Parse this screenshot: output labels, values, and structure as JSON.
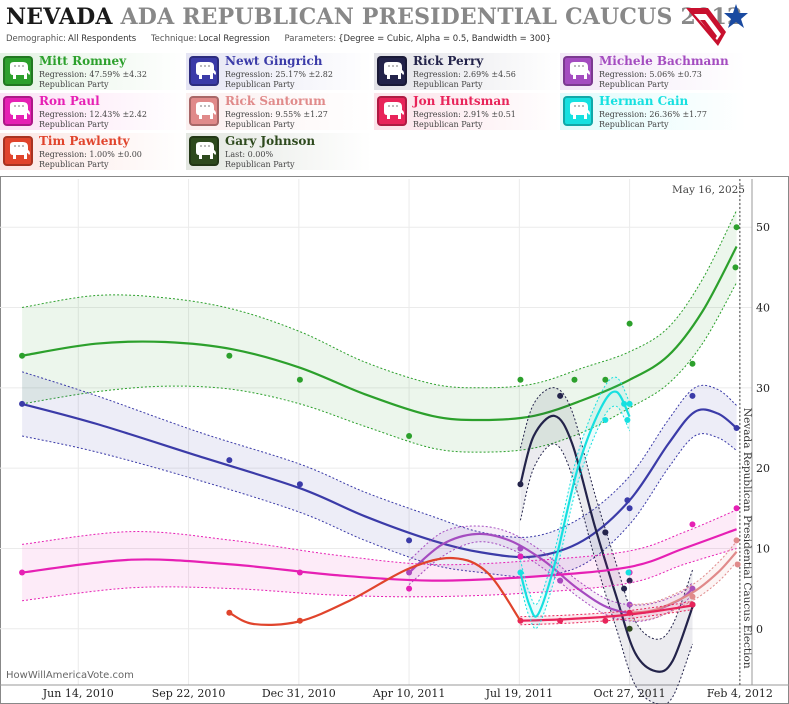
{
  "header": {
    "title_main": "NEVADA",
    "title_rest": "ADA REPUBLICAN PRESIDENTIAL CAUCUS 2012",
    "demographic_label": "Demographic:",
    "demographic_value": "All Respondents",
    "technique_label": "Technique:",
    "technique_value": "Local Regression",
    "parameters_label": "Parameters:",
    "parameters_value": "{Degree = Cubic, Alpha = 0.5, Bandwidth = 300}"
  },
  "candidates": [
    {
      "name": "Mitt Romney",
      "stat": "Regression: 47.59% ±4.32",
      "party": "Republican Party",
      "color": "#2ca02c"
    },
    {
      "name": "Newt Gingrich",
      "stat": "Regression: 25.17% ±2.82",
      "party": "Republican Party",
      "color": "#3b3ba8"
    },
    {
      "name": "Rick Perry",
      "stat": "Regression: 2.69% ±4.56",
      "party": "Republican Party",
      "color": "#23234a"
    },
    {
      "name": "Michele Bachmann",
      "stat": "Regression: 5.06% ±0.73",
      "party": "Republican Party",
      "color": "#a44cc0"
    },
    {
      "name": "Ron Paul",
      "stat": "Regression: 12.43% ±2.42",
      "party": "Republican Party",
      "color": "#e620b4"
    },
    {
      "name": "Rick Santorum",
      "stat": "Regression: 9.55% ±1.27",
      "party": "Republican Party",
      "color": "#e08a8a"
    },
    {
      "name": "Jon Huntsman",
      "stat": "Regression: 2.91% ±0.51",
      "party": "Republican Party",
      "color": "#e8245a"
    },
    {
      "name": "Herman Cain",
      "stat": "Regression: 26.36% ±1.77",
      "party": "Republican Party",
      "color": "#16e0e0"
    },
    {
      "name": "Tim Pawlenty",
      "stat": "Regression: 1.00% ±0.00",
      "party": "Republican Party",
      "color": "#e0442c"
    },
    {
      "name": "Gary Johnson",
      "stat": "Last: 0.00%",
      "party": "Republican Party",
      "color": "#2e4a1e"
    }
  ],
  "chart_data": {
    "type": "line",
    "date_stamp": "May 16, 2025",
    "watermark": "HowWillAmericaVote.com",
    "event_label": "Nevada Republican Presidential Caucus Election",
    "x_ticks": [
      "Jun 14, 2010",
      "Sep 22, 2010",
      "Dec 31, 2010",
      "Apr 10, 2011",
      "Jul 19, 2011",
      "Oct 27, 2011",
      "Feb 4, 2012"
    ],
    "x_range": [
      "2010-04-04",
      "2012-02-15"
    ],
    "event_date": "2012-02-04",
    "y_ticks": [
      0,
      10,
      20,
      30,
      40,
      50
    ],
    "ylim": [
      -7,
      56
    ],
    "series": [
      {
        "name": "Mitt Romney",
        "points": [
          [
            "2010-04-24",
            34
          ],
          [
            "2010-10-29",
            34
          ],
          [
            "2011-01-01",
            31
          ],
          [
            "2011-04-10",
            24
          ],
          [
            "2011-07-20",
            31
          ],
          [
            "2011-09-07",
            31
          ],
          [
            "2011-10-05",
            31
          ],
          [
            "2011-10-27",
            38
          ],
          [
            "2011-12-23",
            33
          ],
          [
            "2012-01-31",
            45
          ],
          [
            "2012-02-01",
            50
          ]
        ],
        "curve": [
          [
            "2010-04-24",
            34
          ],
          [
            "2010-06-30",
            35.5
          ],
          [
            "2010-09-01",
            35.7
          ],
          [
            "2010-11-01",
            34.8
          ],
          [
            "2011-01-01",
            32.5
          ],
          [
            "2011-03-01",
            29.2
          ],
          [
            "2011-05-01",
            26.5
          ],
          [
            "2011-06-15",
            26
          ],
          [
            "2011-08-01",
            26.5
          ],
          [
            "2011-09-15",
            28.5
          ],
          [
            "2011-10-27",
            31
          ],
          [
            "2011-12-01",
            34
          ],
          [
            "2012-01-01",
            39.5
          ],
          [
            "2012-02-01",
            47.6
          ]
        ],
        "band": [
          6,
          6,
          5.5,
          5,
          4.5,
          4,
          4,
          4,
          4,
          4,
          3.5,
          3.5,
          4,
          4.5
        ]
      },
      {
        "name": "Newt Gingrich",
        "points": [
          [
            "2010-04-24",
            28
          ],
          [
            "2010-10-29",
            21
          ],
          [
            "2011-01-01",
            18
          ],
          [
            "2011-04-10",
            11
          ],
          [
            "2011-07-20",
            9
          ],
          [
            "2011-10-05",
            12
          ],
          [
            "2011-10-25",
            16
          ],
          [
            "2011-10-27",
            15
          ],
          [
            "2011-12-23",
            29
          ],
          [
            "2012-02-01",
            25
          ]
        ],
        "curve": [
          [
            "2010-04-24",
            28
          ],
          [
            "2010-07-01",
            25.5
          ],
          [
            "2010-10-01",
            21.5
          ],
          [
            "2011-01-01",
            17.5
          ],
          [
            "2011-03-01",
            14
          ],
          [
            "2011-05-01",
            11
          ],
          [
            "2011-06-15",
            9.5
          ],
          [
            "2011-08-01",
            9
          ],
          [
            "2011-09-15",
            11
          ],
          [
            "2011-10-27",
            16
          ],
          [
            "2011-12-01",
            23
          ],
          [
            "2011-12-25",
            27
          ],
          [
            "2012-01-15",
            26.8
          ],
          [
            "2012-02-01",
            25
          ]
        ],
        "band": [
          4,
          3.5,
          3,
          3,
          3,
          3,
          2.5,
          2.5,
          3,
          3,
          3,
          3,
          3,
          2.8
        ]
      },
      {
        "name": "Rick Perry",
        "points": [
          [
            "2011-07-20",
            18
          ],
          [
            "2011-08-25",
            29
          ],
          [
            "2011-10-05",
            12
          ],
          [
            "2011-10-22",
            5
          ],
          [
            "2011-10-27",
            6
          ],
          [
            "2011-12-23",
            3
          ]
        ],
        "curve": [
          [
            "2011-07-20",
            18
          ],
          [
            "2011-08-01",
            24
          ],
          [
            "2011-08-20",
            26.5
          ],
          [
            "2011-09-05",
            23
          ],
          [
            "2011-09-25",
            13
          ],
          [
            "2011-10-15",
            4
          ],
          [
            "2011-11-01",
            -3
          ],
          [
            "2011-11-20",
            -5.3
          ],
          [
            "2011-12-05",
            -4
          ],
          [
            "2011-12-23",
            2.7
          ]
        ],
        "band": [
          4.5,
          4,
          3.5,
          4,
          4,
          4,
          4,
          4,
          4.5,
          4.6
        ]
      },
      {
        "name": "Michele Bachmann",
        "points": [
          [
            "2011-04-10",
            7
          ],
          [
            "2011-07-20",
            10
          ],
          [
            "2011-08-25",
            6
          ],
          [
            "2011-10-27",
            3
          ],
          [
            "2011-12-23",
            5
          ]
        ],
        "curve": [
          [
            "2011-04-10",
            7
          ],
          [
            "2011-05-10",
            10.5
          ],
          [
            "2011-06-10",
            11.8
          ],
          [
            "2011-07-10",
            11
          ],
          [
            "2011-08-10",
            8.5
          ],
          [
            "2011-09-10",
            5
          ],
          [
            "2011-10-10",
            2.5
          ],
          [
            "2011-11-10",
            2
          ],
          [
            "2011-12-10",
            3.5
          ],
          [
            "2011-12-23",
            5
          ]
        ],
        "band": [
          1.5,
          1.5,
          1,
          1,
          1,
          1,
          1,
          1,
          0.8,
          0.73
        ]
      },
      {
        "name": "Ron Paul",
        "points": [
          [
            "2010-04-24",
            7
          ],
          [
            "2011-01-01",
            7
          ],
          [
            "2011-04-10",
            5
          ],
          [
            "2011-07-20",
            9
          ],
          [
            "2011-10-27",
            7
          ],
          [
            "2011-12-23",
            13
          ],
          [
            "2012-02-01",
            15
          ]
        ],
        "curve": [
          [
            "2010-04-24",
            7
          ],
          [
            "2010-08-01",
            8.6
          ],
          [
            "2010-11-01",
            8
          ],
          [
            "2011-02-01",
            6.7
          ],
          [
            "2011-05-01",
            6
          ],
          [
            "2011-08-01",
            6.5
          ],
          [
            "2011-10-27",
            7.7
          ],
          [
            "2011-12-15",
            10
          ],
          [
            "2012-02-01",
            12.4
          ]
        ],
        "band": [
          3.5,
          3.5,
          3,
          2.5,
          2,
          2,
          2,
          2,
          2.4
        ]
      },
      {
        "name": "Rick Santorum",
        "points": [
          [
            "2011-10-27",
            2
          ],
          [
            "2011-12-23",
            4
          ],
          [
            "2012-02-01",
            11
          ],
          [
            "2012-02-02",
            8
          ]
        ],
        "curve": [
          [
            "2011-10-27",
            2
          ],
          [
            "2011-11-20",
            2.4
          ],
          [
            "2011-12-23",
            4.5
          ],
          [
            "2012-01-15",
            7
          ],
          [
            "2012-02-01",
            9.6
          ]
        ],
        "band": [
          1,
          1,
          1,
          1.2,
          1.27
        ]
      },
      {
        "name": "Jon Huntsman",
        "points": [
          [
            "2011-07-20",
            1
          ],
          [
            "2011-08-25",
            1
          ],
          [
            "2011-10-05",
            1
          ],
          [
            "2011-10-27",
            2
          ],
          [
            "2011-12-23",
            3
          ]
        ],
        "curve": [
          [
            "2011-07-20",
            1
          ],
          [
            "2011-09-01",
            1.2
          ],
          [
            "2011-10-15",
            1.6
          ],
          [
            "2011-11-20",
            2.2
          ],
          [
            "2011-12-23",
            2.9
          ]
        ],
        "band": [
          0.5,
          0.5,
          0.5,
          0.5,
          0.51
        ]
      },
      {
        "name": "Herman Cain",
        "points": [
          [
            "2011-07-20",
            7
          ],
          [
            "2011-10-05",
            26
          ],
          [
            "2011-10-22",
            28
          ],
          [
            "2011-10-25",
            26
          ],
          [
            "2011-10-27",
            28
          ],
          [
            "2011-10-26",
            7
          ]
        ],
        "curve": [
          [
            "2011-07-20",
            7
          ],
          [
            "2011-07-28",
            3
          ],
          [
            "2011-08-05",
            1.8
          ],
          [
            "2011-08-20",
            8
          ],
          [
            "2011-09-10",
            20
          ],
          [
            "2011-10-01",
            27.5
          ],
          [
            "2011-10-15",
            29.5
          ],
          [
            "2011-10-27",
            26.4
          ]
        ],
        "band": [
          1.5,
          1.5,
          1.5,
          1.7,
          1.8,
          1.8,
          1.8,
          1.77
        ]
      },
      {
        "name": "Tim Pawlenty",
        "points": [
          [
            "2010-10-29",
            2
          ],
          [
            "2011-01-01",
            1
          ]
        ],
        "curve": [
          [
            "2010-10-29",
            2
          ],
          [
            "2010-11-20",
            0.6
          ],
          [
            "2010-12-31",
            0.9
          ],
          [
            "2011-02-15",
            3.5
          ],
          [
            "2011-04-10",
            7.5
          ],
          [
            "2011-05-20",
            8.8
          ],
          [
            "2011-06-20",
            7
          ],
          [
            "2011-07-20",
            1
          ]
        ],
        "band": [
          0,
          0,
          0,
          0,
          0,
          0,
          0,
          0
        ]
      },
      {
        "name": "Gary Johnson",
        "points": [
          [
            "2011-10-27",
            0
          ]
        ],
        "curve": [],
        "band": []
      }
    ]
  }
}
